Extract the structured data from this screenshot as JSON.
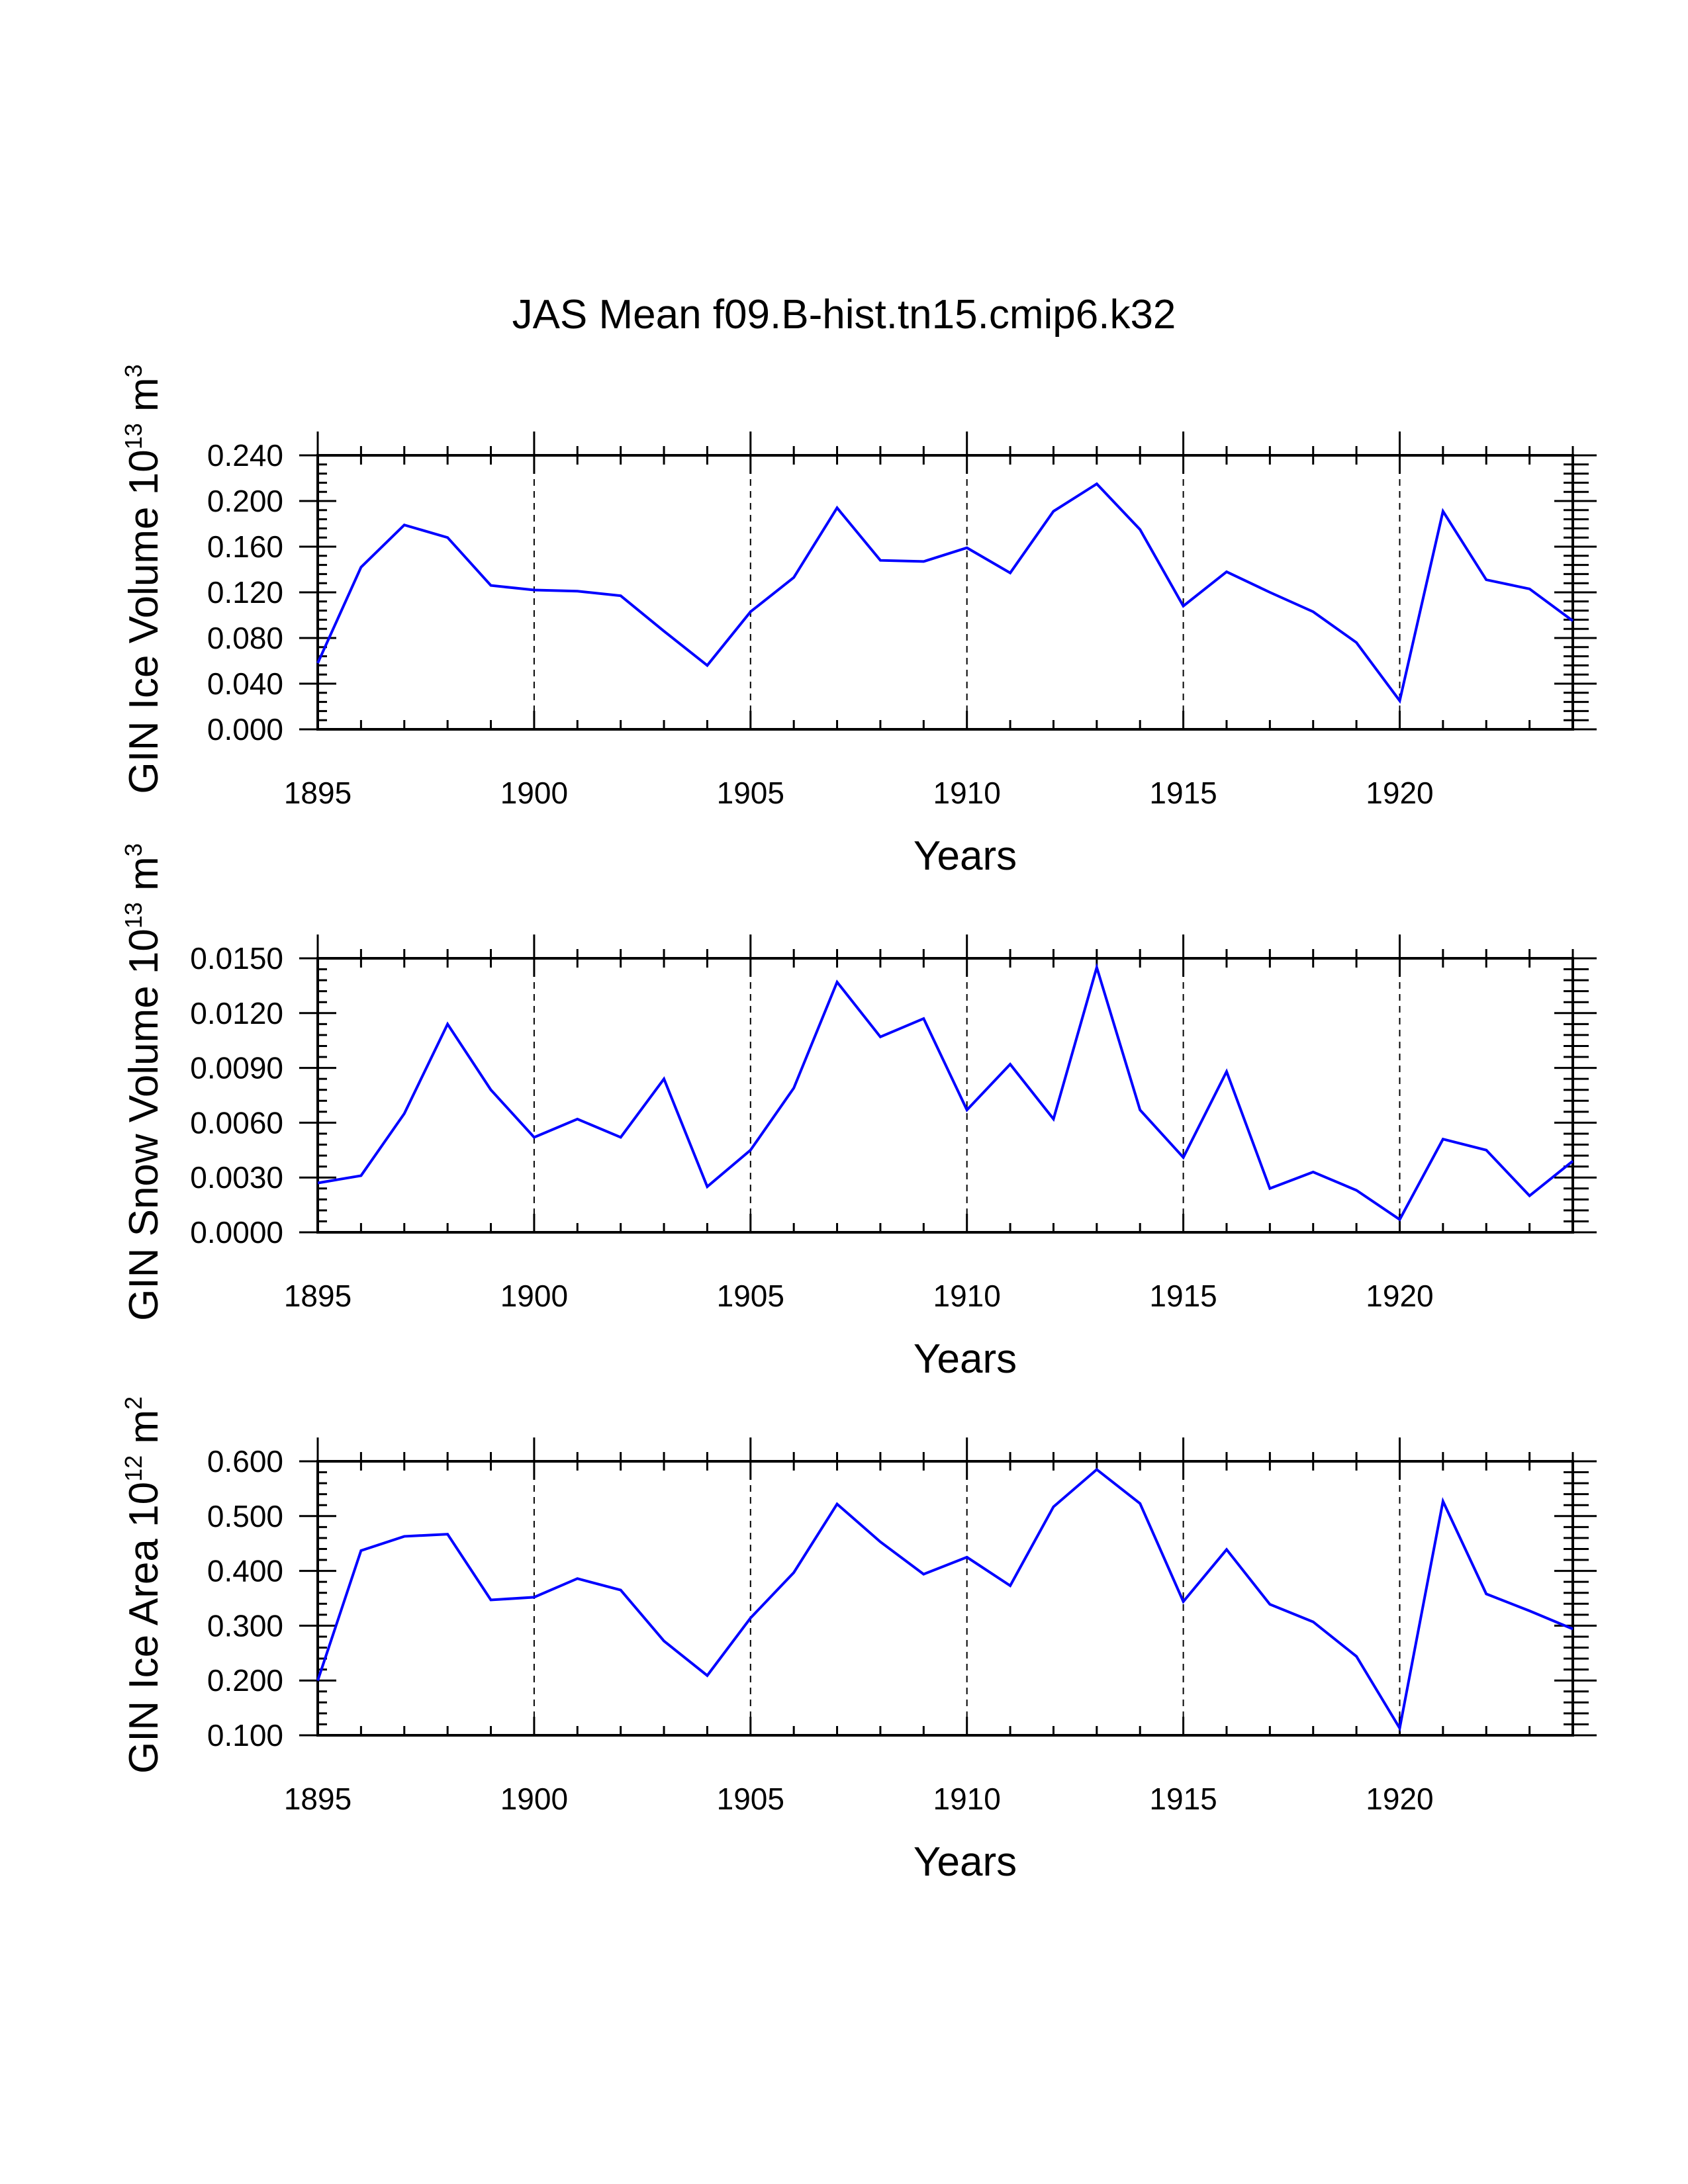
{
  "figure": {
    "title": "JAS Mean f09.B-hist.tn15.cmip6.k32"
  },
  "chart_data": [
    {
      "type": "line",
      "ylabel": "GIN Ice Volume 10",
      "ylabel_exp": "13",
      "ylabel_unit": "m",
      "ylabel_unit_exp": "3",
      "xlabel": "Years",
      "xlim": [
        1895,
        1924
      ],
      "ylim": [
        0.0,
        0.24
      ],
      "xticks": [
        1895,
        1900,
        1905,
        1910,
        1915,
        1920
      ],
      "yticks": [
        0.0,
        0.04,
        0.08,
        0.12,
        0.16,
        0.2,
        0.24
      ],
      "ytick_labels": [
        "0.000",
        "0.040",
        "0.080",
        "0.120",
        "0.160",
        "0.200",
        "0.240"
      ],
      "vlines": [
        1900,
        1905,
        1910,
        1915,
        1920
      ],
      "color": "#0000ff",
      "x": [
        1895,
        1896,
        1897,
        1898,
        1899,
        1900,
        1901,
        1902,
        1903,
        1904,
        1905,
        1906,
        1907,
        1908,
        1909,
        1910,
        1911,
        1912,
        1913,
        1914,
        1915,
        1916,
        1917,
        1918,
        1919,
        1920,
        1921,
        1922,
        1923,
        1924
      ],
      "values": [
        0.058,
        0.142,
        0.179,
        0.168,
        0.126,
        0.122,
        0.121,
        0.117,
        0.086,
        0.056,
        0.103,
        0.133,
        0.194,
        0.148,
        0.147,
        0.159,
        0.137,
        0.191,
        0.215,
        0.175,
        0.108,
        0.138,
        0.12,
        0.103,
        0.076,
        0.025,
        0.191,
        0.131,
        0.123,
        0.095
      ]
    },
    {
      "type": "line",
      "ylabel": "GIN Snow Volume 10",
      "ylabel_exp": "13",
      "ylabel_unit": "m",
      "ylabel_unit_exp": "3",
      "xlabel": "Years",
      "xlim": [
        1895,
        1924
      ],
      "ylim": [
        0.0,
        0.015
      ],
      "xticks": [
        1895,
        1900,
        1905,
        1910,
        1915,
        1920
      ],
      "yticks": [
        0.0,
        0.003,
        0.006,
        0.009,
        0.012,
        0.015
      ],
      "ytick_labels": [
        "0.0000",
        "0.0030",
        "0.0060",
        "0.0090",
        "0.0120",
        "0.0150"
      ],
      "vlines": [
        1900,
        1905,
        1910,
        1915,
        1920
      ],
      "color": "#0000ff",
      "x": [
        1895,
        1896,
        1897,
        1898,
        1899,
        1900,
        1901,
        1902,
        1903,
        1904,
        1905,
        1906,
        1907,
        1908,
        1909,
        1910,
        1911,
        1912,
        1913,
        1914,
        1915,
        1916,
        1917,
        1918,
        1919,
        1920,
        1921,
        1922,
        1923,
        1924
      ],
      "values": [
        0.0027,
        0.0031,
        0.0065,
        0.0114,
        0.0078,
        0.0052,
        0.0062,
        0.0052,
        0.0084,
        0.0025,
        0.0045,
        0.0079,
        0.0137,
        0.0107,
        0.0117,
        0.0067,
        0.0092,
        0.0062,
        0.0145,
        0.0067,
        0.0041,
        0.0088,
        0.0024,
        0.0033,
        0.0023,
        0.0007,
        0.0051,
        0.0045,
        0.002,
        0.0039
      ]
    },
    {
      "type": "line",
      "ylabel": "GIN Ice Area 10",
      "ylabel_exp": "12",
      "ylabel_unit": "m",
      "ylabel_unit_exp": "2",
      "xlabel": "Years",
      "xlim": [
        1895,
        1924
      ],
      "ylim": [
        0.1,
        0.6
      ],
      "xticks": [
        1895,
        1900,
        1905,
        1910,
        1915,
        1920
      ],
      "yticks": [
        0.1,
        0.2,
        0.3,
        0.4,
        0.5,
        0.6
      ],
      "ytick_labels": [
        "0.100",
        "0.200",
        "0.300",
        "0.400",
        "0.500",
        "0.600"
      ],
      "vlines": [
        1900,
        1905,
        1910,
        1915,
        1920
      ],
      "color": "#0000ff",
      "x": [
        1895,
        1896,
        1897,
        1898,
        1899,
        1900,
        1901,
        1902,
        1903,
        1904,
        1905,
        1906,
        1907,
        1908,
        1909,
        1910,
        1911,
        1912,
        1913,
        1914,
        1915,
        1916,
        1917,
        1918,
        1919,
        1920,
        1921,
        1922,
        1923,
        1924
      ],
      "values": [
        0.2,
        0.437,
        0.463,
        0.467,
        0.347,
        0.352,
        0.386,
        0.365,
        0.272,
        0.209,
        0.314,
        0.397,
        0.522,
        0.453,
        0.394,
        0.425,
        0.373,
        0.517,
        0.585,
        0.523,
        0.344,
        0.439,
        0.339,
        0.307,
        0.244,
        0.113,
        0.527,
        0.358,
        0.327,
        0.294
      ]
    }
  ]
}
